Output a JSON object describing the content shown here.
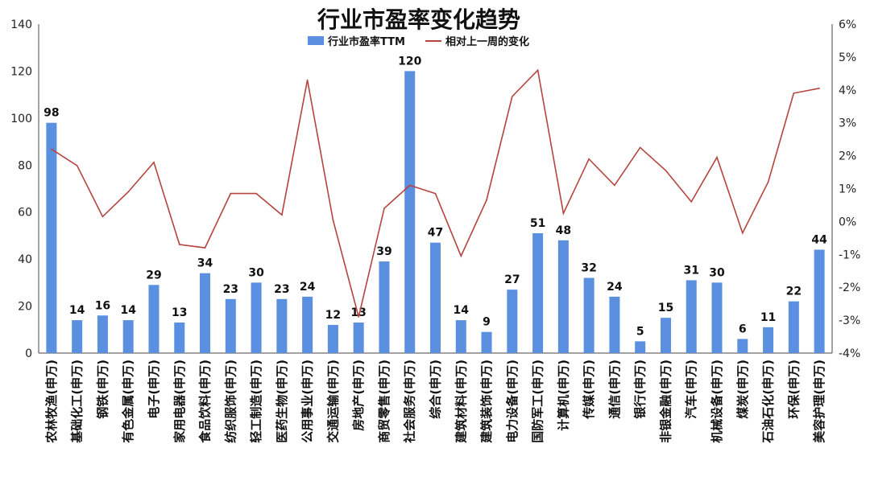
{
  "chart_data": {
    "type": "bar",
    "title": "行业市盈率变化趋势",
    "categories": [
      "农林牧渔(申万)",
      "基础化工(申万)",
      "钢铁(申万)",
      "有色金属(申万)",
      "电子(申万)",
      "家用电器(申万)",
      "食品饮料(申万)",
      "纺织服饰(申万)",
      "轻工制造(申万)",
      "医药生物(申万)",
      "公用事业(申万)",
      "交通运输(申万)",
      "房地产(申万)",
      "商贸零售(申万)",
      "社会服务(申万)",
      "综合(申万)",
      "建筑材料(申万)",
      "建筑装饰(申万)",
      "电力设备(申万)",
      "国防军工(申万)",
      "计算机(申万)",
      "传媒(申万)",
      "通信(申万)",
      "银行(申万)",
      "非银金融(申万)",
      "汽车(申万)",
      "机械设备(申万)",
      "煤炭(申万)",
      "石油石化(申万)",
      "环保(申万)",
      "美容护理(申万)"
    ],
    "series": [
      {
        "name": "行业市盈率TTM",
        "kind": "bar",
        "axis": "left",
        "color": "#5b8fe0",
        "values": [
          98,
          14,
          16,
          14,
          29,
          13,
          34,
          23,
          30,
          23,
          24,
          12,
          13,
          39,
          120,
          47,
          14,
          9,
          27,
          51,
          48,
          32,
          24,
          5,
          15,
          31,
          30,
          6,
          11,
          22,
          44
        ],
        "data_labels": [
          "98",
          "14",
          "16",
          "14",
          "29",
          "13",
          "34",
          "23",
          "30",
          "23",
          "24",
          "12",
          "13",
          "39",
          "120",
          "47",
          "14",
          "9",
          "27",
          "51",
          "48",
          "32",
          "24",
          "5",
          "15",
          "31",
          "30",
          "6",
          "11",
          "22",
          "44"
        ]
      },
      {
        "name": "相对上一周的变化",
        "kind": "line",
        "axis": "right",
        "color": "#b5443f",
        "unit": "%",
        "values": [
          2.2,
          1.7,
          0.15,
          0.9,
          1.8,
          -0.7,
          -0.8,
          0.85,
          0.85,
          0.2,
          4.3,
          0.05,
          -2.9,
          0.4,
          1.1,
          0.85,
          -1.05,
          0.65,
          3.8,
          4.6,
          0.25,
          1.9,
          1.1,
          2.25,
          1.55,
          0.6,
          1.95,
          -0.35,
          1.2,
          3.9,
          4.05
        ]
      }
    ],
    "ylim": [
      0,
      140
    ],
    "yticks": [
      "0",
      "20",
      "40",
      "60",
      "80",
      "100",
      "120",
      "140"
    ],
    "y2lim": [
      -4,
      6
    ],
    "y2ticks": [
      "-4%",
      "-3%",
      "-2%",
      "-1%",
      "0%",
      "1%",
      "2%",
      "3%",
      "4%",
      "5%",
      "6%"
    ],
    "grid": false,
    "legend": "top-center"
  }
}
